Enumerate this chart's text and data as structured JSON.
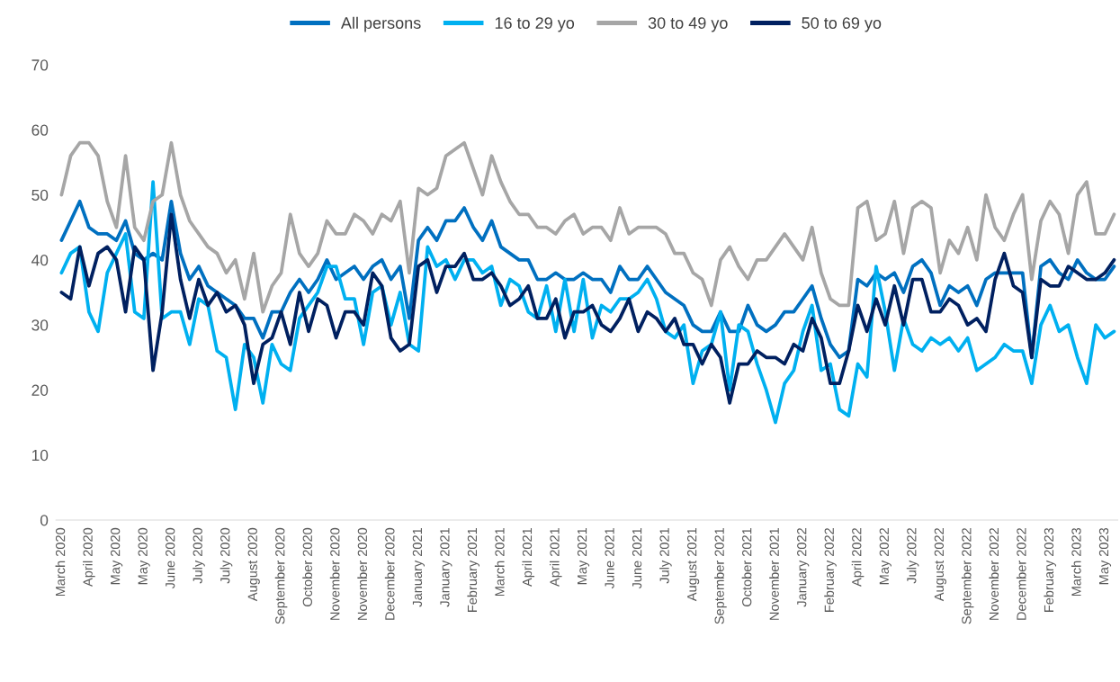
{
  "chart_data": {
    "type": "line",
    "categories": [
      "March 2020",
      null,
      null,
      "April 2020",
      null,
      null,
      "May 2020",
      null,
      null,
      "May 2020",
      null,
      null,
      "June 2020",
      null,
      null,
      "July 2020",
      null,
      null,
      "July 2020",
      null,
      null,
      "August 2020",
      null,
      null,
      "September 2020",
      null,
      null,
      "October 2020",
      null,
      null,
      "November 2020",
      null,
      null,
      "November 2020",
      null,
      null,
      "December 2020",
      null,
      null,
      "January 2021",
      null,
      null,
      "January 2021",
      null,
      null,
      "February 2021",
      null,
      null,
      "March 2021",
      null,
      null,
      "April 2021",
      null,
      null,
      "April 2021",
      null,
      null,
      "May 2021",
      null,
      null,
      "June 2021",
      null,
      null,
      "June 2021",
      null,
      null,
      "July 2021",
      null,
      null,
      "August 2021",
      null,
      null,
      "September 2021",
      null,
      null,
      "October 2021",
      null,
      null,
      "November 2021",
      null,
      null,
      "January 2022",
      null,
      null,
      "February 2022",
      null,
      null,
      "April 2022",
      null,
      null,
      "May 2022",
      null,
      null,
      "July 2022",
      null,
      null,
      "August 2022",
      null,
      null,
      "September 2022",
      null,
      null,
      "November 2022",
      null,
      null,
      "December 2022",
      null,
      null,
      "February 2023",
      null,
      null,
      "March 2023",
      null,
      null,
      "May 2023",
      null
    ],
    "series": [
      {
        "name": "All persons",
        "color": "#0070c0",
        "values": [
          43,
          46,
          49,
          45,
          44,
          44,
          43,
          46,
          41,
          40,
          41,
          40,
          49,
          41,
          37,
          39,
          36,
          35,
          34,
          33,
          31,
          31,
          28,
          32,
          32,
          35,
          37,
          35,
          37,
          40,
          37,
          38,
          39,
          37,
          39,
          40,
          37,
          39,
          31,
          43,
          45,
          43,
          46,
          46,
          48,
          45,
          43,
          46,
          42,
          41,
          40,
          40,
          37,
          37,
          38,
          37,
          37,
          38,
          37,
          37,
          35,
          39,
          37,
          37,
          39,
          37,
          35,
          34,
          33,
          30,
          29,
          29,
          32,
          29,
          29,
          33,
          30,
          29,
          30,
          32,
          32,
          34,
          36,
          31,
          27,
          25,
          26,
          37,
          36,
          38,
          37,
          38,
          35,
          39,
          40,
          38,
          33,
          36,
          35,
          36,
          33,
          37,
          38,
          38,
          38,
          38,
          25,
          39,
          40,
          38,
          37,
          40,
          38,
          37,
          37,
          39
        ]
      },
      {
        "name": "16 to 29 yo",
        "color": "#00b0f0",
        "values": [
          38,
          41,
          42,
          32,
          29,
          38,
          41,
          44,
          32,
          31,
          52,
          31,
          32,
          32,
          27,
          34,
          33,
          26,
          25,
          17,
          27,
          25,
          18,
          27,
          24,
          23,
          31,
          33,
          35,
          39,
          39,
          34,
          34,
          27,
          35,
          36,
          30,
          35,
          27,
          26,
          42,
          39,
          40,
          37,
          40,
          40,
          38,
          39,
          33,
          37,
          36,
          32,
          31,
          36,
          29,
          37,
          29,
          37,
          28,
          33,
          32,
          34,
          34,
          35,
          37,
          34,
          29,
          28,
          30,
          21,
          26,
          27,
          32,
          20,
          30,
          29,
          24,
          20,
          15,
          21,
          23,
          29,
          33,
          23,
          24,
          17,
          16,
          24,
          22,
          39,
          32,
          23,
          31,
          27,
          26,
          28,
          27,
          28,
          26,
          28,
          23,
          24,
          25,
          27,
          26,
          26,
          21,
          30,
          33,
          29,
          30,
          25,
          21,
          30,
          28,
          29
        ]
      },
      {
        "name": "30 to 49 yo",
        "color": "#a6a6a6",
        "values": [
          50,
          56,
          58,
          58,
          56,
          49,
          45,
          56,
          45,
          43,
          49,
          50,
          58,
          50,
          46,
          44,
          42,
          41,
          38,
          40,
          34,
          41,
          32,
          36,
          38,
          47,
          41,
          39,
          41,
          46,
          44,
          44,
          47,
          46,
          44,
          47,
          46,
          49,
          38,
          51,
          50,
          51,
          56,
          57,
          58,
          54,
          50,
          56,
          52,
          49,
          47,
          47,
          45,
          45,
          44,
          46,
          47,
          44,
          45,
          45,
          43,
          48,
          44,
          45,
          45,
          45,
          44,
          41,
          41,
          38,
          37,
          33,
          40,
          42,
          39,
          37,
          40,
          40,
          42,
          44,
          42,
          40,
          45,
          38,
          34,
          33,
          33,
          48,
          49,
          43,
          44,
          49,
          41,
          48,
          49,
          48,
          38,
          43,
          41,
          45,
          40,
          50,
          45,
          43,
          47,
          50,
          37,
          46,
          49,
          47,
          41,
          50,
          52,
          44,
          44,
          47
        ]
      },
      {
        "name": "50 to 69 yo",
        "color": "#002060",
        "values": [
          35,
          34,
          42,
          36,
          41,
          42,
          40,
          32,
          42,
          40,
          23,
          32,
          47,
          37,
          31,
          37,
          33,
          35,
          32,
          33,
          30,
          21,
          27,
          28,
          32,
          27,
          35,
          29,
          34,
          33,
          28,
          32,
          32,
          30,
          38,
          36,
          28,
          26,
          27,
          39,
          40,
          35,
          39,
          39,
          41,
          37,
          37,
          38,
          36,
          33,
          34,
          36,
          31,
          31,
          34,
          28,
          32,
          32,
          33,
          30,
          29,
          31,
          34,
          29,
          32,
          31,
          29,
          31,
          27,
          27,
          24,
          27,
          25,
          18,
          24,
          24,
          26,
          25,
          25,
          24,
          27,
          26,
          31,
          28,
          21,
          21,
          26,
          33,
          29,
          34,
          30,
          36,
          30,
          37,
          37,
          32,
          32,
          34,
          33,
          30,
          31,
          29,
          37,
          41,
          36,
          35,
          25,
          37,
          36,
          36,
          39,
          38,
          37,
          37,
          38,
          40
        ]
      }
    ],
    "ylim": [
      0,
      70
    ],
    "yticks": [
      0,
      10,
      20,
      30,
      40,
      50,
      60,
      70
    ],
    "grid": false,
    "legend": "top",
    "marker": "none",
    "line_style": "solid"
  }
}
